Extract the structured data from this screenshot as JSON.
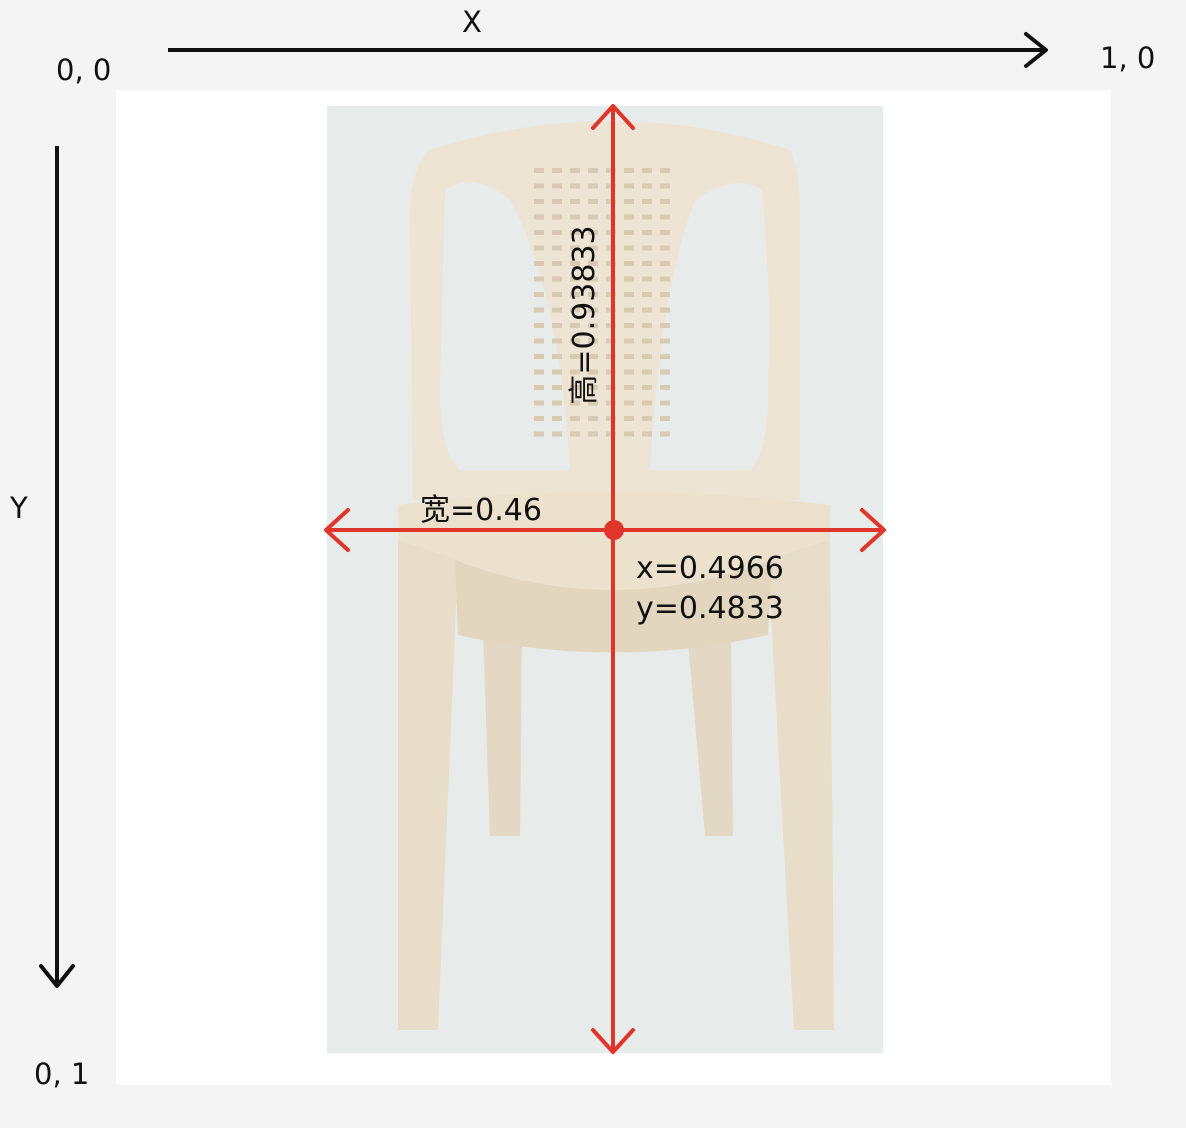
{
  "axes": {
    "x_label": "X",
    "y_label": "Y",
    "origin_label": "0, 0",
    "x_end_label": "1, 0",
    "y_end_label": "0, 1"
  },
  "annotation": {
    "height_label": "高=0.93833",
    "width_label": "宽=0.46",
    "x_label": "x=0.4966",
    "y_label": "y=0.4833"
  },
  "colors": {
    "axis": "#111111",
    "marker": "#e0352b",
    "chair": "#ede4d3",
    "chair_shadow": "#dcd1bb",
    "photo_bg": "#e7ebe9"
  },
  "icons": {
    "object": "chair-icon"
  }
}
